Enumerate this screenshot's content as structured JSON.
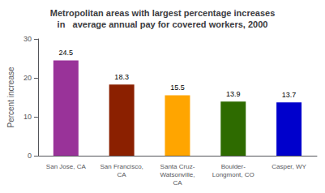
{
  "chart_data": {
    "type": "bar",
    "title": "Metropolitan areas with largest percentage increases\nin   average annual pay for covered workers, 2000",
    "categories": [
      "San Jose, CA",
      "San Francisco,\nCA",
      "Santa Cruz-\nWatsonville,\nCA",
      "Boulder-\nLongmont, CO",
      "Casper, WY"
    ],
    "values": [
      24.5,
      18.3,
      15.5,
      13.9,
      13.7
    ],
    "colors": [
      "#993399",
      "#8B2000",
      "#FFA500",
      "#2E6B00",
      "#0000CC"
    ],
    "ylabel": "Percent increase",
    "ylim": [
      0,
      30
    ],
    "yticks": [
      0,
      10,
      20,
      30
    ],
    "grid": false,
    "data_labels": true
  }
}
